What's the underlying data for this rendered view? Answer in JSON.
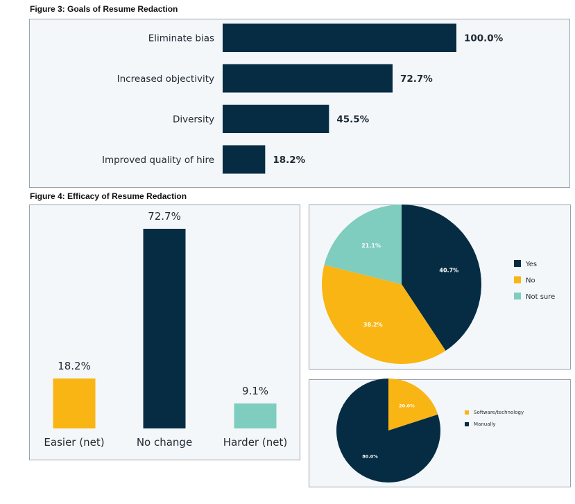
{
  "figure3": {
    "title": "Figure 3: Goals of Resume Redaction"
  },
  "figure4": {
    "title": "Figure 4: Efficacy of Resume Redaction"
  },
  "colors": {
    "navy": "#062c43",
    "yellow": "#f9b514",
    "teal": "#7ecdbf",
    "panel_bg": "#f4f7fa"
  },
  "chart_data": [
    {
      "type": "bar",
      "orientation": "horizontal",
      "categories": [
        "Eliminate bias",
        "Increased objectivity",
        "Diversity",
        "Improved quality of hire"
      ],
      "values": [
        100.0,
        72.7,
        45.5,
        18.2
      ],
      "value_labels": [
        "100.0%",
        "72.7%",
        "45.5%",
        "18.2%"
      ],
      "title": "",
      "xlabel": "",
      "ylabel": "",
      "xlim": [
        0,
        100
      ],
      "grid": false,
      "color": "#062c43"
    },
    {
      "type": "bar",
      "orientation": "vertical",
      "categories": [
        "Easier (net)",
        "No change",
        "Harder (net)"
      ],
      "values": [
        18.2,
        72.7,
        9.1
      ],
      "value_labels": [
        "18.2%",
        "72.7%",
        "9.1%"
      ],
      "colors": [
        "#f9b514",
        "#062c43",
        "#7ecdbf"
      ],
      "title": "",
      "ylim": [
        0,
        72.7
      ],
      "grid": false
    },
    {
      "type": "pie",
      "labels": [
        "Yes",
        "No",
        "Not sure"
      ],
      "values": [
        40.7,
        38.2,
        21.1
      ],
      "value_labels": [
        "40.7%",
        "38.2%",
        "21.1%"
      ],
      "colors": [
        "#062c43",
        "#f9b514",
        "#7ecdbf"
      ],
      "legend": "right"
    },
    {
      "type": "pie",
      "labels": [
        "Software/technology",
        "Manually"
      ],
      "values": [
        20.0,
        80.0
      ],
      "value_labels": [
        "20.0%",
        "80.0%"
      ],
      "colors": [
        "#f9b514",
        "#062c43"
      ],
      "legend": "right"
    }
  ]
}
